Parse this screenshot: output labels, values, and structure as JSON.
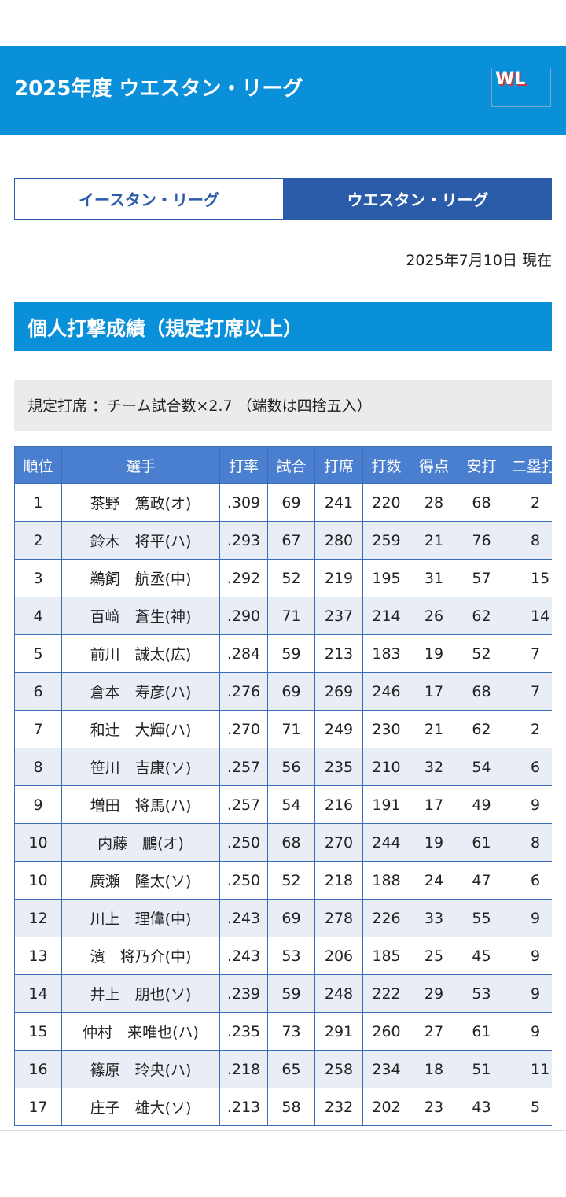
{
  "header": {
    "title": "2025年度 ウエスタン・リーグ",
    "logo": "WL"
  },
  "tabs": [
    "イースタン・リーグ",
    "ウエスタン・リーグ"
  ],
  "date": "2025年7月10日 現在",
  "section_title": "個人打撃成績（規定打席以上）",
  "note": "規定打席 ：チーム試合数×2.7 （端数は四捨五入）",
  "table": {
    "columns": [
      "順位",
      "選手",
      "打率",
      "試合",
      "打席",
      "打数",
      "得点",
      "安打",
      "二塁打"
    ],
    "rows": [
      [
        "1",
        "茶野　篤政(オ)",
        ".309",
        "69",
        "241",
        "220",
        "28",
        "68",
        "2"
      ],
      [
        "2",
        "鈴木　将平(ハ)",
        ".293",
        "67",
        "280",
        "259",
        "21",
        "76",
        "8"
      ],
      [
        "3",
        "鵜飼　航丞(中)",
        ".292",
        "52",
        "219",
        "195",
        "31",
        "57",
        "15"
      ],
      [
        "4",
        "百﨑　蒼生(神)",
        ".290",
        "71",
        "237",
        "214",
        "26",
        "62",
        "14"
      ],
      [
        "5",
        "前川　誠太(広)",
        ".284",
        "59",
        "213",
        "183",
        "19",
        "52",
        "7"
      ],
      [
        "6",
        "倉本　寿彦(ハ)",
        ".276",
        "69",
        "269",
        "246",
        "17",
        "68",
        "7"
      ],
      [
        "7",
        "和辻　大輝(ハ)",
        ".270",
        "71",
        "249",
        "230",
        "21",
        "62",
        "2"
      ],
      [
        "8",
        "笹川　吉康(ソ)",
        ".257",
        "56",
        "235",
        "210",
        "32",
        "54",
        "6"
      ],
      [
        "9",
        "増田　将馬(ハ)",
        ".257",
        "54",
        "216",
        "191",
        "17",
        "49",
        "9"
      ],
      [
        "10",
        "内藤　鵬(オ)",
        ".250",
        "68",
        "270",
        "244",
        "19",
        "61",
        "8"
      ],
      [
        "10",
        "廣瀬　隆太(ソ)",
        ".250",
        "52",
        "218",
        "188",
        "24",
        "47",
        "6"
      ],
      [
        "12",
        "川上　理偉(中)",
        ".243",
        "69",
        "278",
        "226",
        "33",
        "55",
        "9"
      ],
      [
        "13",
        "濱　将乃介(中)",
        ".243",
        "53",
        "206",
        "185",
        "25",
        "45",
        "9"
      ],
      [
        "14",
        "井上　朋也(ソ)",
        ".239",
        "59",
        "248",
        "222",
        "29",
        "53",
        "9"
      ],
      [
        "15",
        "仲村　来唯也(ハ)",
        ".235",
        "73",
        "291",
        "260",
        "27",
        "61",
        "9"
      ],
      [
        "16",
        "篠原　玲央(ハ)",
        ".218",
        "65",
        "258",
        "234",
        "18",
        "51",
        "11"
      ],
      [
        "17",
        "庄子　雄大(ソ)",
        ".213",
        "58",
        "232",
        "202",
        "23",
        "43",
        "5"
      ]
    ]
  }
}
